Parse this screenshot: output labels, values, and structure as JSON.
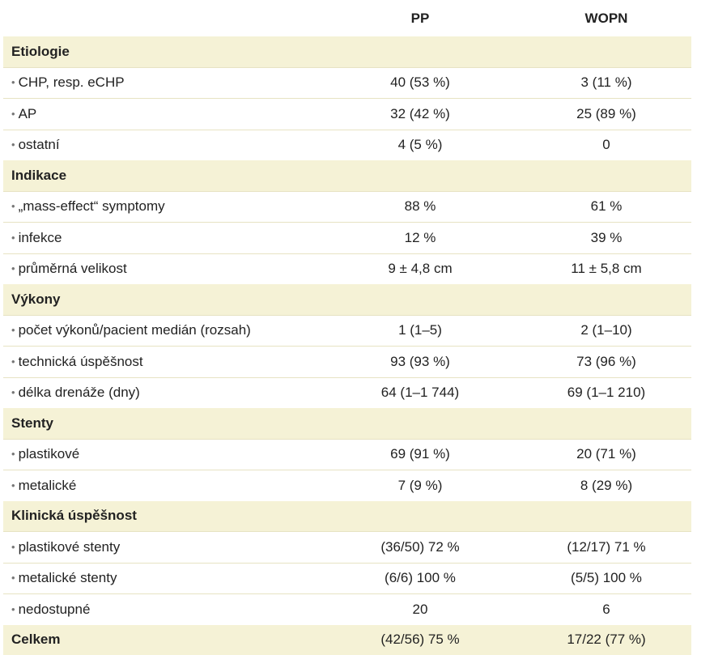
{
  "header": {
    "col_label": "",
    "col_pp": "PP",
    "col_wopn": "WOPN"
  },
  "sections": [
    {
      "title": "Etiologie",
      "rows": [
        {
          "label": "CHP, resp. eCHP",
          "pp": "40 (53 %)",
          "wopn": "3 (11 %)"
        },
        {
          "label": "AP",
          "pp": "32 (42 %)",
          "wopn": "25 (89 %)"
        },
        {
          "label": "ostatní",
          "pp": "4 (5 %)",
          "wopn": "0"
        }
      ]
    },
    {
      "title": "Indikace",
      "rows": [
        {
          "label": "„mass-effect“ symptomy",
          "pp": "88 %",
          "wopn": "61 %"
        },
        {
          "label": "infekce",
          "pp": "12 %",
          "wopn": "39 %"
        },
        {
          "label": "průměrná velikost",
          "pp": "9 ± 4,8 cm",
          "wopn": "11 ± 5,8 cm"
        }
      ]
    },
    {
      "title": "Výkony",
      "rows": [
        {
          "label": "počet výkonů/pacient medián (rozsah)",
          "pp": "1 (1–5)",
          "wopn": "2 (1–10)"
        },
        {
          "label": "technická úspěšnost",
          "pp": "93 (93 %)",
          "wopn": "73 (96 %)"
        },
        {
          "label": "délka drenáže (dny)",
          "pp": "64 (1–1 744)",
          "wopn": "69 (1–1 210)"
        }
      ]
    },
    {
      "title": "Stenty",
      "rows": [
        {
          "label": "plastikové",
          "pp": "69 (91 %)",
          "wopn": "20 (71 %)"
        },
        {
          "label": "metalické",
          "pp": "7 (9 %)",
          "wopn": "8 (29 %)"
        }
      ]
    },
    {
      "title": "Klinická úspěšnost",
      "rows": [
        {
          "label": "plastikové stenty",
          "pp": "(36/50) 72 %",
          "wopn": "(12/17) 71 %"
        },
        {
          "label": "metalické stenty",
          "pp": "(6/6) 100 %",
          "wopn": "(5/5) 100 %"
        },
        {
          "label": "nedostupné",
          "pp": "20",
          "wopn": "6"
        }
      ]
    }
  ],
  "total": {
    "label": "Celkem",
    "pp": "(42/56) 75 %",
    "wopn": "17/22 (77 %)"
  },
  "colors": {
    "section_bg": "#f5f2d6",
    "row_bg": "#ffffff",
    "divider": "#e7e3c3"
  }
}
